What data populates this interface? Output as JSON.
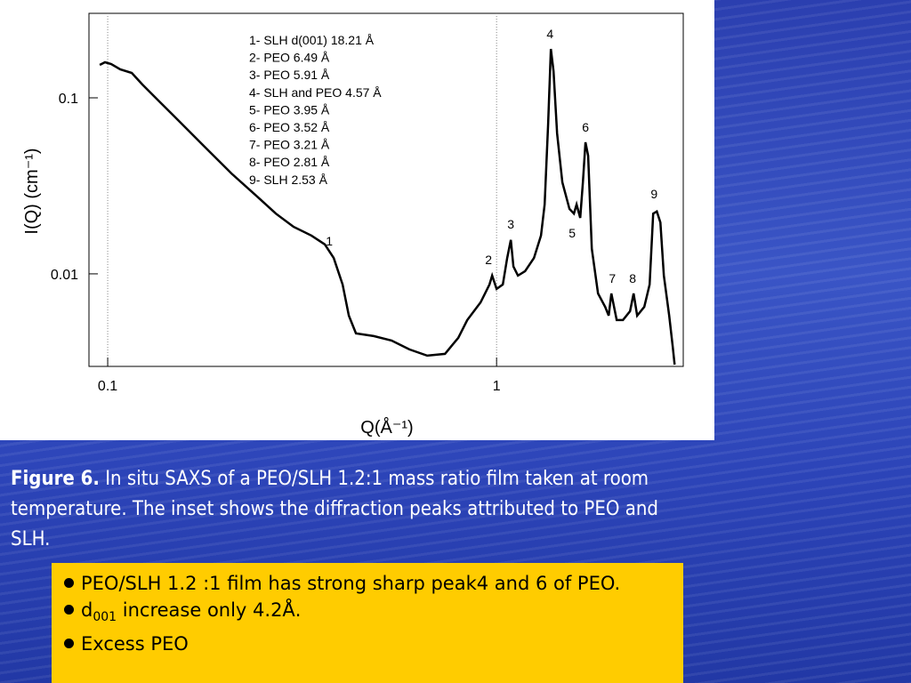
{
  "chart_data": {
    "type": "line",
    "log_x": true,
    "log_y": true,
    "grid": "x",
    "color": "#000000",
    "xlabel": "Q(Å⁻¹)",
    "ylabel": "I(Q) (cm⁻¹)",
    "xlim": [
      0.0895,
      3.02
    ],
    "ylim": [
      0.00298,
      0.302
    ],
    "xticks": [
      0.1,
      1
    ],
    "yticks": [
      0.01,
      0.1
    ],
    "x": [
      0.0954,
      0.0984,
      0.1021,
      0.1077,
      0.1153,
      0.1228,
      0.1365,
      0.1517,
      0.1776,
      0.208,
      0.2436,
      0.2707,
      0.3008,
      0.3342,
      0.3617,
      0.3813,
      0.4019,
      0.417,
      0.4349,
      0.4833,
      0.537,
      0.5968,
      0.6631,
      0.7368,
      0.797,
      0.8404,
      0.9095,
      0.9587,
      0.9741,
      1.0,
      1.0375,
      1.065,
      1.088,
      1.105,
      1.135,
      1.184,
      1.248,
      1.301,
      1.329,
      1.357,
      1.379,
      1.401,
      1.431,
      1.476,
      1.54,
      1.581,
      1.606,
      1.641,
      1.667,
      1.693,
      1.72,
      1.757,
      1.823,
      1.902,
      1.942,
      1.973,
      2.005,
      2.037,
      2.113,
      2.204,
      2.251,
      2.299,
      2.398,
      2.475,
      2.528,
      2.582,
      2.637,
      2.693,
      2.779,
      2.838,
      2.869
    ],
    "values": [
      0.1538,
      0.1592,
      0.1556,
      0.1451,
      0.1385,
      0.1191,
      0.0943,
      0.0747,
      0.0527,
      0.0372,
      0.0272,
      0.022,
      0.0185,
      0.0165,
      0.0147,
      0.0123,
      0.0087,
      0.00579,
      0.00459,
      0.00443,
      0.00418,
      0.00372,
      0.00343,
      0.00351,
      0.00433,
      0.00546,
      0.00689,
      0.0087,
      0.00977,
      0.00821,
      0.0087,
      0.0123,
      0.0156,
      0.011,
      0.00977,
      0.01035,
      0.0123,
      0.0165,
      0.0248,
      0.0706,
      0.1896,
      0.1418,
      0.0628,
      0.0331,
      0.0234,
      0.022,
      0.0248,
      0.0208,
      0.0331,
      0.0559,
      0.0469,
      0.0139,
      0.00774,
      0.0065,
      0.00579,
      0.00774,
      0.0065,
      0.00546,
      0.00546,
      0.00614,
      0.00774,
      0.00579,
      0.0065,
      0.0087,
      0.022,
      0.0226,
      0.0196,
      0.00977,
      0.00579,
      0.00385,
      0.00305
    ],
    "annotations": [
      {
        "text": "1",
        "x": 0.3713,
        "y": 0.01538
      },
      {
        "text": "2",
        "x": 0.9537,
        "y": 0.01204
      },
      {
        "text": "3",
        "x": 1.088,
        "y": 0.01918
      },
      {
        "text": "4",
        "x": 1.372,
        "y": 0.231
      },
      {
        "text": "5",
        "x": 1.565,
        "y": 0.01708
      },
      {
        "text": "6",
        "x": 1.693,
        "y": 0.0681
      },
      {
        "text": "7",
        "x": 1.984,
        "y": 0.00943
      },
      {
        "text": "8",
        "x": 2.239,
        "y": 0.00943
      },
      {
        "text": "9",
        "x": 2.541,
        "y": 0.0285
      }
    ],
    "inset": [
      "1- SLH d(001) 18.21 Å",
      "2- PEO 6.49 Å",
      "3- PEO 5.91 Å",
      "4- SLH and PEO 4.57 Å",
      "5- PEO 3.95 Å",
      "6- PEO 3.52 Å",
      "7- PEO 3.21 Å",
      "8- PEO 2.81 Å",
      "9- SLH 2.53 Å"
    ]
  },
  "caption": {
    "label": "Figure 6.",
    "text": " In situ SAXS of a PEO/SLH 1.2:1 mass ratio film taken at room temperature. The inset shows the diffraction peaks attributed to PEO and SLH."
  },
  "notes": {
    "bullet0": "PEO/SLH 1.2 :1 film has strong sharp peak4 and 6 of PEO.",
    "bullet1": {
      "text": "d",
      "sub": "001",
      "rest": " increase only 4.2Å."
    },
    "bullet2": "Excess PEO"
  }
}
